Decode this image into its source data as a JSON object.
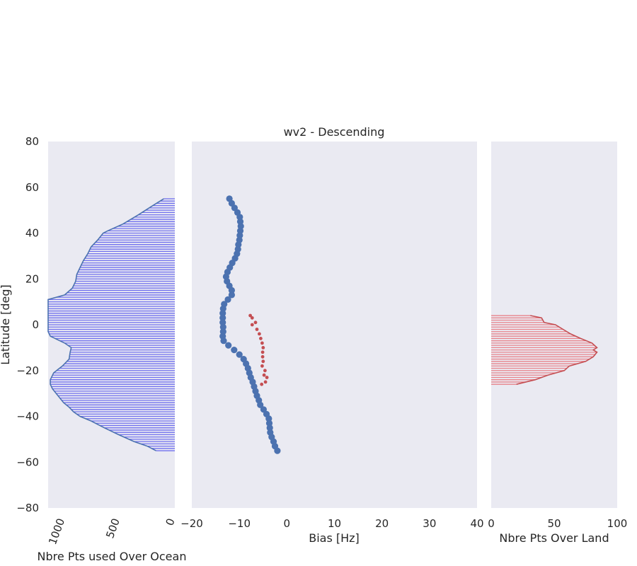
{
  "chart_data": [
    {
      "type": "area",
      "panel": "ocean-histogram",
      "xlabel": "Nbre Pts used Over Ocean",
      "ylabel": "Latitude [deg]",
      "xlim": [
        1150,
        0
      ],
      "ylim": [
        -80,
        80
      ],
      "xticks": [
        "1000",
        "500",
        "0"
      ],
      "xtick_values": [
        1000,
        500,
        0
      ],
      "yticks": [
        "80",
        "60",
        "40",
        "20",
        "0",
        "−20",
        "−40",
        "−60",
        "−80"
      ],
      "ytick_values": [
        80,
        60,
        40,
        20,
        0,
        -20,
        -40,
        -60,
        -80
      ],
      "grid": false,
      "color": "#4c72b0",
      "fill_color": "#7070ee",
      "series": [
        {
          "lat": [
            55,
            52,
            48,
            44,
            41,
            40,
            37,
            34,
            31,
            28,
            25,
            22,
            19,
            16,
            13,
            11,
            7,
            3,
            0,
            -3,
            -5,
            -8,
            -10,
            -12,
            -15,
            -18,
            -21,
            -24,
            -26,
            -28,
            -31,
            -34,
            -36,
            -38,
            -40,
            -42,
            -45,
            -48,
            -51,
            -53,
            -55
          ],
          "count": [
            100,
            200,
            330,
            470,
            610,
            650,
            700,
            760,
            790,
            830,
            860,
            890,
            900,
            930,
            1000,
            1150,
            1150,
            1150,
            1150,
            1150,
            1130,
            1000,
            940,
            950,
            960,
            1020,
            1100,
            1130,
            1130,
            1110,
            1060,
            1010,
            960,
            920,
            860,
            760,
            640,
            510,
            370,
            250,
            170
          ]
        }
      ]
    },
    {
      "type": "scatter",
      "panel": "bias",
      "title": "wv2 - Descending",
      "xlabel": "Bias [Hz]",
      "xlim": [
        -20,
        40
      ],
      "ylim": [
        -80,
        80
      ],
      "xticks": [
        "−20",
        "−10",
        "0",
        "10",
        "20",
        "30",
        "40"
      ],
      "xtick_values": [
        -20,
        -10,
        0,
        10,
        20,
        30,
        40
      ],
      "grid": false,
      "series": [
        {
          "color": "#4c72b0",
          "points": [
            [
              -12.1,
              55
            ],
            [
              -11.6,
              53
            ],
            [
              -11.0,
              51
            ],
            [
              -10.4,
              49
            ],
            [
              -9.9,
              47
            ],
            [
              -9.8,
              45
            ],
            [
              -9.7,
              43
            ],
            [
              -9.8,
              41
            ],
            [
              -9.9,
              39
            ],
            [
              -10.0,
              37
            ],
            [
              -10.2,
              35
            ],
            [
              -10.3,
              33
            ],
            [
              -10.5,
              31
            ],
            [
              -10.9,
              29
            ],
            [
              -11.5,
              27
            ],
            [
              -12.0,
              25
            ],
            [
              -12.5,
              23
            ],
            [
              -12.8,
              21
            ],
            [
              -12.6,
              19
            ],
            [
              -12.1,
              17
            ],
            [
              -11.6,
              15
            ],
            [
              -11.6,
              13
            ],
            [
              -12.4,
              11
            ],
            [
              -13.2,
              9
            ],
            [
              -13.4,
              7
            ],
            [
              -13.5,
              5
            ],
            [
              -13.5,
              3
            ],
            [
              -13.5,
              1
            ],
            [
              -13.4,
              -1
            ],
            [
              -13.4,
              -3
            ],
            [
              -13.5,
              -5
            ],
            [
              -13.3,
              -7
            ],
            [
              -12.3,
              -9
            ],
            [
              -11.1,
              -11
            ],
            [
              -10.0,
              -13
            ],
            [
              -9.1,
              -15
            ],
            [
              -8.6,
              -17
            ],
            [
              -8.2,
              -19
            ],
            [
              -7.9,
              -21
            ],
            [
              -7.6,
              -23
            ],
            [
              -7.2,
              -25
            ],
            [
              -6.9,
              -27
            ],
            [
              -6.6,
              -29
            ],
            [
              -6.3,
              -31
            ],
            [
              -5.9,
              -33
            ],
            [
              -5.6,
              -35
            ],
            [
              -4.9,
              -37
            ],
            [
              -4.3,
              -39
            ],
            [
              -3.8,
              -41
            ],
            [
              -3.7,
              -43
            ],
            [
              -3.6,
              -45
            ],
            [
              -3.5,
              -47
            ],
            [
              -3.2,
              -49
            ],
            [
              -2.8,
              -51
            ],
            [
              -2.5,
              -53
            ],
            [
              -2.0,
              -55
            ]
          ]
        },
        {
          "color": "#c44e52",
          "points": [
            [
              -7.7,
              4
            ],
            [
              -7.3,
              3
            ],
            [
              -6.6,
              1
            ],
            [
              -7.3,
              0
            ],
            [
              -6.3,
              -2
            ],
            [
              -5.8,
              -4
            ],
            [
              -5.5,
              -6
            ],
            [
              -5.2,
              -8
            ],
            [
              -5.0,
              -10
            ],
            [
              -5.1,
              -12
            ],
            [
              -5.1,
              -14
            ],
            [
              -5.0,
              -16
            ],
            [
              -5.2,
              -18
            ],
            [
              -4.6,
              -20
            ],
            [
              -4.8,
              -22
            ],
            [
              -4.2,
              -23
            ],
            [
              -4.5,
              -25
            ],
            [
              -5.3,
              -26
            ]
          ]
        }
      ]
    },
    {
      "type": "area",
      "panel": "land-histogram",
      "xlabel": "Nbre Pts Over Land",
      "xlim": [
        0,
        100
      ],
      "ylim": [
        -80,
        80
      ],
      "xticks": [
        "0",
        "50",
        "100"
      ],
      "xtick_values": [
        0,
        50,
        100
      ],
      "grid": false,
      "color": "#c44e52",
      "fill_color": "#e8828a",
      "series": [
        {
          "lat": [
            4,
            3,
            1,
            0,
            -2,
            -4,
            -6,
            -8,
            -10,
            -11,
            -12,
            -14,
            -16,
            -18,
            -20,
            -22,
            -24,
            -26
          ],
          "count": [
            31,
            40,
            42,
            51,
            57,
            63,
            71,
            80,
            84,
            81,
            84,
            81,
            75,
            62,
            58,
            45,
            35,
            20
          ]
        }
      ]
    }
  ]
}
